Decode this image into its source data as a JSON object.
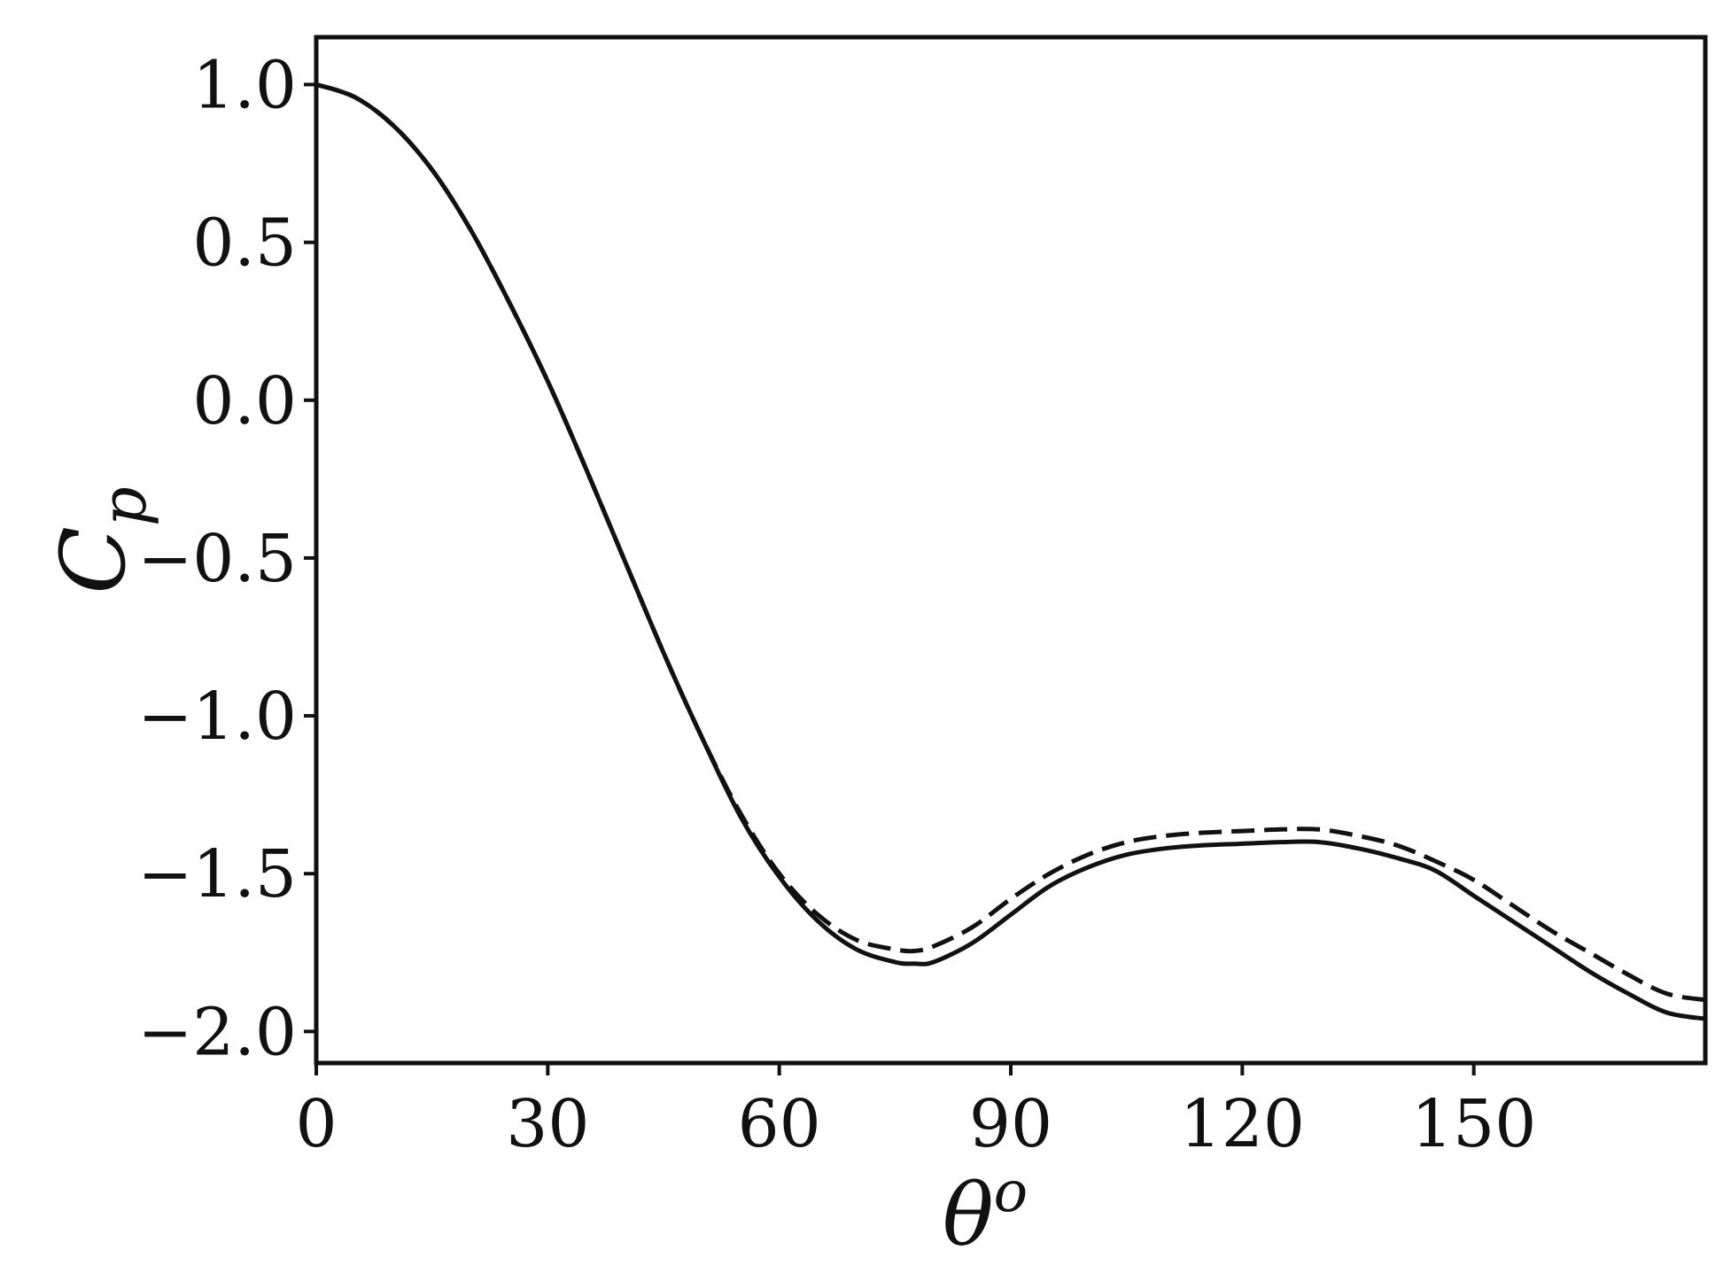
{
  "chart_data": {
    "type": "line",
    "xlabel": "θ",
    "xlabel_superscript": "o",
    "ylabel": "C",
    "ylabel_subscript": "p",
    "xlim": [
      0,
      180
    ],
    "ylim": [
      -2.1,
      1.15
    ],
    "xticks": [
      0,
      30,
      60,
      90,
      120,
      150
    ],
    "xtick_labels": [
      "0",
      "30",
      "60",
      "90",
      "120",
      "150"
    ],
    "yticks": [
      1.0,
      0.5,
      0.0,
      -0.5,
      -1.0,
      -1.5,
      -2.0
    ],
    "ytick_labels": [
      "1.0",
      "0.5",
      "0.0",
      "−0.5",
      "−1.0",
      "−1.5",
      "−2.0"
    ],
    "grid": false,
    "legend": "none",
    "series": [
      {
        "style": "solid",
        "color": "#111111",
        "x": [
          0,
          5,
          10,
          15,
          20,
          25,
          30,
          35,
          40,
          45,
          50,
          55,
          60,
          65,
          70,
          75,
          77.5,
          80,
          85,
          90,
          95,
          100,
          105,
          110,
          115,
          120,
          125,
          130,
          135,
          140,
          145,
          150,
          155,
          160,
          165,
          170,
          175,
          180
        ],
        "y": [
          1.0,
          0.96,
          0.87,
          0.73,
          0.54,
          0.31,
          0.06,
          -0.22,
          -0.51,
          -0.8,
          -1.07,
          -1.32,
          -1.51,
          -1.65,
          -1.74,
          -1.78,
          -1.785,
          -1.78,
          -1.72,
          -1.63,
          -1.54,
          -1.48,
          -1.44,
          -1.42,
          -1.41,
          -1.405,
          -1.4,
          -1.4,
          -1.42,
          -1.45,
          -1.49,
          -1.57,
          -1.65,
          -1.73,
          -1.81,
          -1.88,
          -1.94,
          -1.96
        ]
      },
      {
        "style": "dashed",
        "color": "#111111",
        "x": [
          0,
          5,
          10,
          15,
          20,
          25,
          30,
          35,
          40,
          45,
          50,
          55,
          60,
          65,
          70,
          75,
          77.5,
          80,
          85,
          90,
          95,
          100,
          105,
          110,
          115,
          120,
          125,
          130,
          135,
          140,
          145,
          150,
          155,
          160,
          165,
          170,
          175,
          180
        ],
        "y": [
          1.0,
          0.96,
          0.87,
          0.73,
          0.54,
          0.31,
          0.06,
          -0.22,
          -0.51,
          -0.8,
          -1.07,
          -1.31,
          -1.5,
          -1.63,
          -1.71,
          -1.74,
          -1.745,
          -1.73,
          -1.67,
          -1.58,
          -1.5,
          -1.44,
          -1.4,
          -1.38,
          -1.37,
          -1.365,
          -1.36,
          -1.36,
          -1.38,
          -1.41,
          -1.46,
          -1.52,
          -1.6,
          -1.68,
          -1.75,
          -1.82,
          -1.88,
          -1.9
        ]
      }
    ]
  }
}
